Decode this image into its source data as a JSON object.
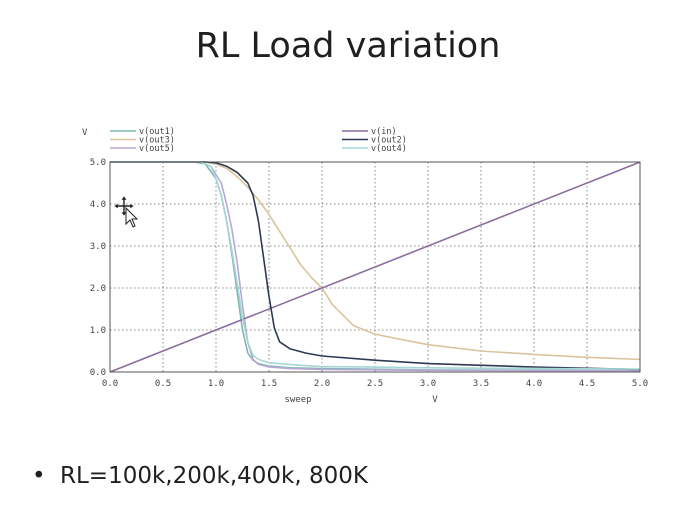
{
  "slide": {
    "title": "RL Load variation",
    "bullet": "RL=100k,200k,400k, 800K"
  },
  "chart_data": {
    "type": "line",
    "ylabel": "V",
    "xlabel": "sweep",
    "xunit": "V",
    "xlim": [
      0,
      5
    ],
    "ylim": [
      0,
      5
    ],
    "grid": true,
    "legend_placement": "top",
    "xticks": [
      "0.0",
      "0.5",
      "1.0",
      "1.5",
      "2.0",
      "2.5",
      "3.0",
      "3.5",
      "4.0",
      "4.5",
      "5.0"
    ],
    "yticks": [
      "0.0",
      "1.0",
      "2.0",
      "3.0",
      "4.0",
      "5.0"
    ],
    "series": [
      {
        "name": "v(out1)",
        "color": "#7fb8b0",
        "x": [
          0,
          0.8,
          0.9,
          1.0,
          1.05,
          1.1,
          1.15,
          1.2,
          1.25,
          1.3,
          1.35,
          1.4,
          1.5,
          1.7,
          2.0,
          3.0,
          4.0,
          5.0
        ],
        "y": [
          5.0,
          5.0,
          4.95,
          4.6,
          4.2,
          3.6,
          2.8,
          1.9,
          1.0,
          0.45,
          0.28,
          0.2,
          0.14,
          0.1,
          0.08,
          0.05,
          0.04,
          0.03
        ]
      },
      {
        "name": "v(out3)",
        "color": "#d9c49e",
        "x": [
          0,
          0.9,
          1.0,
          1.1,
          1.2,
          1.3,
          1.4,
          1.5,
          1.6,
          1.7,
          1.8,
          1.9,
          2.0,
          2.1,
          2.3,
          2.5,
          3.0,
          3.5,
          4.0,
          4.5,
          5.0
        ],
        "y": [
          5.0,
          5.0,
          4.95,
          4.85,
          4.65,
          4.4,
          4.1,
          3.75,
          3.35,
          2.95,
          2.55,
          2.25,
          2.0,
          1.6,
          1.1,
          0.9,
          0.65,
          0.5,
          0.42,
          0.35,
          0.3
        ]
      },
      {
        "name": "v(out5)",
        "color": "#b9a7d6",
        "x": [
          0,
          0.85,
          0.95,
          1.05,
          1.1,
          1.15,
          1.2,
          1.25,
          1.3,
          1.35,
          1.4,
          1.5,
          1.7,
          2.0,
          3.0,
          4.0,
          5.0
        ],
        "y": [
          5.0,
          5.0,
          4.9,
          4.5,
          4.0,
          3.4,
          2.6,
          1.6,
          0.7,
          0.3,
          0.18,
          0.12,
          0.08,
          0.06,
          0.04,
          0.03,
          0.03
        ]
      },
      {
        "name": "v(in)",
        "color": "#8a6f9e",
        "x": [
          0,
          5.0
        ],
        "y": [
          0,
          5.0
        ]
      },
      {
        "name": "v(out2)",
        "color": "#2e3a55",
        "x": [
          0,
          0.9,
          1.0,
          1.1,
          1.2,
          1.3,
          1.35,
          1.4,
          1.45,
          1.5,
          1.55,
          1.6,
          1.7,
          1.85,
          2.0,
          2.5,
          3.0,
          4.0,
          5.0
        ],
        "y": [
          5.0,
          5.0,
          4.98,
          4.9,
          4.75,
          4.5,
          4.2,
          3.6,
          2.7,
          1.8,
          1.05,
          0.72,
          0.55,
          0.45,
          0.38,
          0.28,
          0.2,
          0.12,
          0.06
        ]
      },
      {
        "name": "v(out4)",
        "color": "#a6d6d6",
        "x": [
          0,
          0.85,
          0.95,
          1.0,
          1.05,
          1.1,
          1.15,
          1.2,
          1.25,
          1.3,
          1.35,
          1.4,
          1.5,
          1.8,
          2.0,
          3.0,
          4.0,
          5.0
        ],
        "y": [
          5.0,
          5.0,
          4.9,
          4.6,
          4.2,
          3.6,
          2.9,
          2.1,
          1.3,
          0.7,
          0.4,
          0.3,
          0.22,
          0.16,
          0.13,
          0.1,
          0.08,
          0.07
        ]
      }
    ]
  }
}
